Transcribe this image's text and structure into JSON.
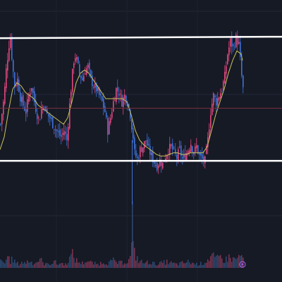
{
  "theme": {
    "background": "#161a25",
    "grid": "#232838",
    "candle_up": "#e0477e",
    "candle_down": "#3f72d9",
    "moving_average": "#c9c25a",
    "support_resistance": "#ffffff",
    "price_line": "#7a2f3d",
    "volume_up": "#7c3450",
    "volume_down": "#2c4a73",
    "marker": "#9b59d0"
  },
  "marker_icon": "event-circle-icon",
  "chart_data": {
    "type": "candlestick",
    "title": "",
    "grid": true,
    "legend": "none",
    "ylim": [
      0,
      100
    ],
    "resistance_level": 92,
    "support_level": 15,
    "current_price_line": 48,
    "close_path": [
      [
        0,
        38
      ],
      [
        5,
        55
      ],
      [
        8,
        72
      ],
      [
        12,
        88
      ],
      [
        14,
        92
      ],
      [
        17,
        75
      ],
      [
        20,
        62
      ],
      [
        24,
        66
      ],
      [
        28,
        55
      ],
      [
        32,
        50
      ],
      [
        36,
        46
      ],
      [
        40,
        56
      ],
      [
        44,
        62
      ],
      [
        48,
        52
      ],
      [
        52,
        44
      ],
      [
        55,
        40
      ],
      [
        58,
        48
      ],
      [
        62,
        50
      ],
      [
        66,
        44
      ],
      [
        70,
        42
      ],
      [
        74,
        38
      ],
      [
        78,
        35
      ],
      [
        82,
        32
      ],
      [
        86,
        30
      ],
      [
        90,
        34
      ],
      [
        94,
        28
      ],
      [
        98,
        50
      ],
      [
        102,
        70
      ],
      [
        105,
        82
      ],
      [
        108,
        78
      ],
      [
        112,
        70
      ],
      [
        116,
        66
      ],
      [
        120,
        72
      ],
      [
        124,
        74
      ],
      [
        128,
        66
      ],
      [
        132,
        62
      ],
      [
        136,
        60
      ],
      [
        140,
        56
      ],
      [
        144,
        52
      ],
      [
        148,
        46
      ],
      [
        152,
        34
      ],
      [
        156,
        42
      ],
      [
        160,
        52
      ],
      [
        164,
        60
      ],
      [
        168,
        58
      ],
      [
        172,
        52
      ],
      [
        176,
        56
      ],
      [
        180,
        52
      ],
      [
        184,
        44
      ],
      [
        188,
        30
      ],
      [
        190,
        20
      ],
      [
        194,
        16
      ],
      [
        198,
        22
      ],
      [
        202,
        24
      ],
      [
        206,
        28
      ],
      [
        210,
        22
      ],
      [
        214,
        18
      ],
      [
        218,
        14
      ],
      [
        222,
        12
      ],
      [
        226,
        15
      ],
      [
        230,
        13
      ],
      [
        234,
        18
      ],
      [
        238,
        22
      ],
      [
        242,
        24
      ],
      [
        246,
        20
      ],
      [
        250,
        17
      ],
      [
        254,
        22
      ],
      [
        258,
        16
      ],
      [
        262,
        18
      ],
      [
        266,
        22
      ],
      [
        270,
        26
      ],
      [
        274,
        20
      ],
      [
        278,
        24
      ],
      [
        282,
        18
      ],
      [
        286,
        16
      ],
      [
        290,
        15
      ],
      [
        294,
        28
      ],
      [
        298,
        46
      ],
      [
        302,
        56
      ],
      [
        306,
        52
      ],
      [
        310,
        56
      ],
      [
        314,
        60
      ],
      [
        318,
        68
      ],
      [
        322,
        82
      ],
      [
        326,
        90
      ],
      [
        330,
        86
      ],
      [
        334,
        92
      ],
      [
        338,
        88
      ],
      [
        342,
        68
      ],
      [
        344,
        60
      ]
    ],
    "ma_path": [
      [
        0,
        22
      ],
      [
        6,
        30
      ],
      [
        12,
        46
      ],
      [
        18,
        60
      ],
      [
        24,
        64
      ],
      [
        30,
        62
      ],
      [
        36,
        58
      ],
      [
        42,
        56
      ],
      [
        48,
        54
      ],
      [
        54,
        50
      ],
      [
        60,
        48
      ],
      [
        66,
        46
      ],
      [
        72,
        44
      ],
      [
        78,
        42
      ],
      [
        84,
        40
      ],
      [
        90,
        38
      ],
      [
        96,
        42
      ],
      [
        102,
        52
      ],
      [
        108,
        64
      ],
      [
        114,
        70
      ],
      [
        120,
        72
      ],
      [
        126,
        70
      ],
      [
        132,
        66
      ],
      [
        138,
        62
      ],
      [
        144,
        58
      ],
      [
        150,
        54
      ],
      [
        156,
        54
      ],
      [
        162,
        54
      ],
      [
        168,
        54
      ],
      [
        174,
        54
      ],
      [
        180,
        52
      ],
      [
        186,
        44
      ],
      [
        192,
        34
      ],
      [
        198,
        28
      ],
      [
        204,
        25
      ],
      [
        210,
        23
      ],
      [
        216,
        21
      ],
      [
        222,
        19
      ],
      [
        228,
        18
      ],
      [
        234,
        18
      ],
      [
        240,
        19
      ],
      [
        246,
        20
      ],
      [
        252,
        20
      ],
      [
        258,
        19
      ],
      [
        264,
        19
      ],
      [
        270,
        20
      ],
      [
        276,
        20
      ],
      [
        282,
        20
      ],
      [
        288,
        20
      ],
      [
        294,
        24
      ],
      [
        300,
        34
      ],
      [
        306,
        44
      ],
      [
        312,
        52
      ],
      [
        318,
        60
      ],
      [
        324,
        70
      ],
      [
        330,
        78
      ],
      [
        336,
        84
      ],
      [
        342,
        82
      ],
      [
        344,
        78
      ]
    ],
    "volume_profile": [
      [
        0,
        0.25
      ],
      [
        6,
        0.2
      ],
      [
        10,
        0.5
      ],
      [
        14,
        0.3
      ],
      [
        18,
        0.35
      ],
      [
        22,
        0.2
      ],
      [
        26,
        0.15
      ],
      [
        30,
        0.25
      ],
      [
        34,
        0.2
      ],
      [
        40,
        0.3
      ],
      [
        46,
        0.2
      ],
      [
        52,
        0.25
      ],
      [
        56,
        0.4
      ],
      [
        60,
        0.2
      ],
      [
        66,
        0.15
      ],
      [
        72,
        0.2
      ],
      [
        76,
        0.3
      ],
      [
        80,
        0.15
      ],
      [
        86,
        0.2
      ],
      [
        92,
        0.15
      ],
      [
        98,
        0.4
      ],
      [
        102,
        0.55
      ],
      [
        106,
        0.35
      ],
      [
        110,
        0.25
      ],
      [
        116,
        0.2
      ],
      [
        122,
        0.3
      ],
      [
        130,
        0.2
      ],
      [
        138,
        0.15
      ],
      [
        146,
        0.25
      ],
      [
        152,
        0.2
      ],
      [
        160,
        0.3
      ],
      [
        168,
        0.2
      ],
      [
        176,
        0.25
      ],
      [
        182,
        0.3
      ],
      [
        187,
        1.0
      ],
      [
        190,
        0.6
      ],
      [
        196,
        0.3
      ],
      [
        204,
        0.2
      ],
      [
        212,
        0.25
      ],
      [
        220,
        0.15
      ],
      [
        228,
        0.2
      ],
      [
        236,
        0.25
      ],
      [
        242,
        0.2
      ],
      [
        250,
        0.15
      ],
      [
        258,
        0.2
      ],
      [
        266,
        0.25
      ],
      [
        272,
        0.2
      ],
      [
        280,
        0.15
      ],
      [
        288,
        0.2
      ],
      [
        294,
        0.35
      ],
      [
        300,
        0.5
      ],
      [
        306,
        0.35
      ],
      [
        312,
        0.45
      ],
      [
        318,
        0.3
      ],
      [
        324,
        0.45
      ],
      [
        330,
        0.35
      ],
      [
        336,
        0.4
      ],
      [
        342,
        0.55
      ],
      [
        344,
        0.3
      ]
    ]
  }
}
